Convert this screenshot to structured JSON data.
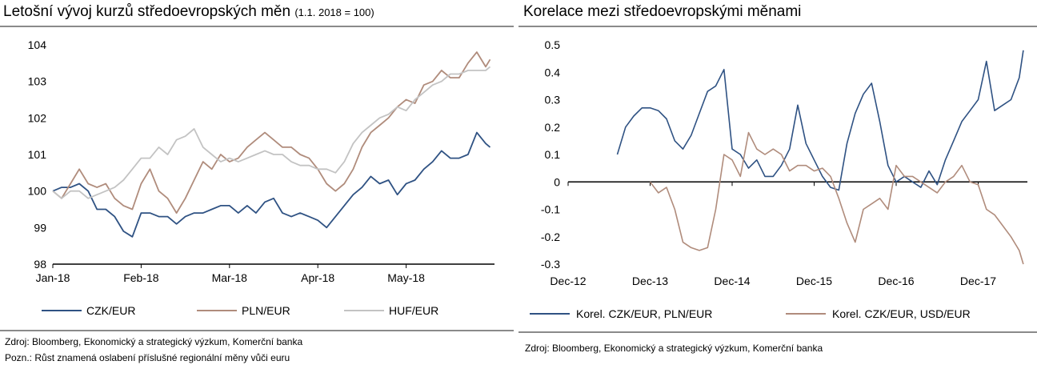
{
  "left": {
    "title": "Letošní vývoj kurzů středoevropských měn",
    "title_sub": "(1.1. 2018 = 100)",
    "source_lines": [
      "Zdroj: Bloomberg, Ekonomický a strategický výzkum, Komerční banka",
      "Pozn.: Růst znamená oslabení příslušné regionální měny vůči euru"
    ]
  },
  "right": {
    "title": "Korelace mezi středoevropskými měnami",
    "source_lines": [
      "Zdroj: Bloomberg, Ekonomický a strategický výzkum, Komerční banka"
    ]
  },
  "chart_data": [
    {
      "type": "line",
      "title": "Letošní vývoj kurzů středoevropských měn (1.1. 2018 = 100)",
      "xlabel": "",
      "ylabel": "",
      "x_ticks": [
        "Jan-18",
        "Feb-18",
        "Mar-18",
        "Apr-18",
        "May-18"
      ],
      "x_range_months": [
        0,
        5
      ],
      "ylim": [
        98,
        104
      ],
      "y_ticks": [
        98,
        99,
        100,
        101,
        102,
        103,
        104
      ],
      "grid": false,
      "legend_position": "bottom",
      "series": [
        {
          "name": "CZK/EUR",
          "color": "#2f5283",
          "x": [
            0,
            0.1,
            0.2,
            0.3,
            0.4,
            0.5,
            0.6,
            0.7,
            0.8,
            0.9,
            1.0,
            1.1,
            1.2,
            1.3,
            1.4,
            1.5,
            1.6,
            1.7,
            1.8,
            1.9,
            2.0,
            2.1,
            2.2,
            2.3,
            2.4,
            2.5,
            2.6,
            2.7,
            2.8,
            2.9,
            3.0,
            3.1,
            3.2,
            3.3,
            3.4,
            3.5,
            3.6,
            3.7,
            3.8,
            3.9,
            4.0,
            4.1,
            4.2,
            4.3,
            4.4,
            4.5,
            4.6,
            4.7,
            4.8,
            4.9,
            4.95
          ],
          "values": [
            100,
            100.1,
            100.1,
            100.2,
            100.0,
            99.5,
            99.5,
            99.3,
            98.9,
            98.75,
            99.4,
            99.4,
            99.3,
            99.3,
            99.1,
            99.3,
            99.4,
            99.4,
            99.5,
            99.6,
            99.6,
            99.4,
            99.6,
            99.4,
            99.7,
            99.8,
            99.4,
            99.3,
            99.4,
            99.3,
            99.2,
            99.0,
            99.3,
            99.6,
            99.9,
            100.1,
            100.4,
            100.2,
            100.3,
            99.9,
            100.2,
            100.3,
            100.6,
            100.8,
            101.1,
            100.9,
            100.9,
            101.0,
            101.6,
            101.3,
            101.2
          ]
        },
        {
          "name": "PLN/EUR",
          "color": "#b08c7c",
          "x": [
            0,
            0.1,
            0.2,
            0.3,
            0.4,
            0.5,
            0.6,
            0.7,
            0.8,
            0.9,
            1.0,
            1.1,
            1.2,
            1.3,
            1.4,
            1.5,
            1.6,
            1.7,
            1.8,
            1.9,
            2.0,
            2.1,
            2.2,
            2.3,
            2.4,
            2.5,
            2.6,
            2.7,
            2.8,
            2.9,
            3.0,
            3.1,
            3.2,
            3.3,
            3.4,
            3.5,
            3.6,
            3.7,
            3.8,
            3.9,
            4.0,
            4.1,
            4.2,
            4.3,
            4.4,
            4.5,
            4.6,
            4.7,
            4.8,
            4.9,
            4.95
          ],
          "values": [
            100,
            99.8,
            100.2,
            100.6,
            100.2,
            100.1,
            100.2,
            99.8,
            99.6,
            99.5,
            100.2,
            100.6,
            100.0,
            99.8,
            99.4,
            99.8,
            100.3,
            100.8,
            100.6,
            101.0,
            100.8,
            100.9,
            101.2,
            101.4,
            101.6,
            101.4,
            101.2,
            101.2,
            101.0,
            100.9,
            100.6,
            100.2,
            100.0,
            100.2,
            100.6,
            101.2,
            101.6,
            101.8,
            102.0,
            102.3,
            102.5,
            102.4,
            102.9,
            103.0,
            103.3,
            103.1,
            103.1,
            103.5,
            103.8,
            103.4,
            103.6
          ]
        },
        {
          "name": "HUF/EUR",
          "color": "#c3c3c3",
          "x": [
            0,
            0.1,
            0.2,
            0.3,
            0.4,
            0.5,
            0.6,
            0.7,
            0.8,
            0.9,
            1.0,
            1.1,
            1.2,
            1.3,
            1.4,
            1.5,
            1.6,
            1.7,
            1.8,
            1.9,
            2.0,
            2.1,
            2.2,
            2.3,
            2.4,
            2.5,
            2.6,
            2.7,
            2.8,
            2.9,
            3.0,
            3.1,
            3.2,
            3.3,
            3.4,
            3.5,
            3.6,
            3.7,
            3.8,
            3.9,
            4.0,
            4.1,
            4.2,
            4.3,
            4.4,
            4.5,
            4.6,
            4.7,
            4.8,
            4.9,
            4.95
          ],
          "values": [
            100,
            99.8,
            100.0,
            100.0,
            99.8,
            99.9,
            100.0,
            100.1,
            100.3,
            100.6,
            100.9,
            100.9,
            101.2,
            101.0,
            101.4,
            101.5,
            101.7,
            101.2,
            101.0,
            100.8,
            100.9,
            100.8,
            100.9,
            101.0,
            101.1,
            101.0,
            101.0,
            100.8,
            100.7,
            100.7,
            100.6,
            100.6,
            100.5,
            100.8,
            101.3,
            101.6,
            101.8,
            102.0,
            102.1,
            102.3,
            102.2,
            102.5,
            102.7,
            102.9,
            103.0,
            103.2,
            103.2,
            103.3,
            103.3,
            103.3,
            103.4
          ]
        }
      ]
    },
    {
      "type": "line",
      "title": "Korelace mezi středoevropskými měnami",
      "xlabel": "",
      "ylabel": "",
      "x_ticks": [
        "Dec-12",
        "Dec-13",
        "Dec-14",
        "Dec-15",
        "Dec-16",
        "Dec-17"
      ],
      "x_range_years": [
        0,
        5.6
      ],
      "ylim": [
        -0.3,
        0.5
      ],
      "y_ticks": [
        -0.3,
        -0.2,
        -0.1,
        0,
        0.1,
        0.2,
        0.3,
        0.4,
        0.5
      ],
      "zero_line": true,
      "grid": false,
      "legend_position": "bottom",
      "series": [
        {
          "name": "Korel. CZK/EUR, PLN/EUR",
          "color": "#2f5283",
          "x": [
            0.6,
            0.7,
            0.8,
            0.9,
            1.0,
            1.1,
            1.2,
            1.3,
            1.4,
            1.5,
            1.6,
            1.7,
            1.8,
            1.9,
            2.0,
            2.1,
            2.2,
            2.3,
            2.4,
            2.5,
            2.6,
            2.7,
            2.8,
            2.9,
            3.0,
            3.1,
            3.2,
            3.3,
            3.4,
            3.5,
            3.6,
            3.7,
            3.8,
            3.9,
            4.0,
            4.1,
            4.2,
            4.3,
            4.4,
            4.5,
            4.6,
            4.7,
            4.8,
            4.9,
            5.0,
            5.1,
            5.2,
            5.3,
            5.4,
            5.5,
            5.55
          ],
          "values": [
            0.1,
            0.2,
            0.24,
            0.27,
            0.27,
            0.26,
            0.23,
            0.15,
            0.12,
            0.17,
            0.25,
            0.33,
            0.35,
            0.41,
            0.12,
            0.1,
            0.05,
            0.08,
            0.02,
            0.02,
            0.06,
            0.12,
            0.28,
            0.14,
            0.08,
            0.02,
            -0.02,
            -0.03,
            0.14,
            0.25,
            0.32,
            0.36,
            0.22,
            0.06,
            0.0,
            0.02,
            0.0,
            -0.02,
            0.04,
            -0.01,
            0.08,
            0.15,
            0.22,
            0.26,
            0.3,
            0.44,
            0.26,
            0.28,
            0.3,
            0.38,
            0.48
          ]
        },
        {
          "name": "Korel. CZK/EUR, USD/EUR",
          "color": "#b08c7c",
          "x": [
            1.0,
            1.1,
            1.2,
            1.3,
            1.4,
            1.5,
            1.6,
            1.7,
            1.8,
            1.9,
            2.0,
            2.1,
            2.2,
            2.3,
            2.4,
            2.5,
            2.6,
            2.7,
            2.8,
            2.9,
            3.0,
            3.1,
            3.2,
            3.3,
            3.4,
            3.5,
            3.6,
            3.7,
            3.8,
            3.9,
            4.0,
            4.1,
            4.2,
            4.3,
            4.4,
            4.5,
            4.6,
            4.7,
            4.8,
            4.9,
            5.0,
            5.1,
            5.2,
            5.3,
            5.4,
            5.5,
            5.55
          ],
          "values": [
            0.0,
            -0.04,
            -0.02,
            -0.1,
            -0.22,
            -0.24,
            -0.25,
            -0.24,
            -0.1,
            0.1,
            0.08,
            0.02,
            0.18,
            0.12,
            0.1,
            0.12,
            0.1,
            0.04,
            0.06,
            0.06,
            0.04,
            0.05,
            0.02,
            -0.06,
            -0.15,
            -0.22,
            -0.1,
            -0.08,
            -0.06,
            -0.1,
            0.06,
            0.02,
            0.02,
            0.0,
            -0.02,
            -0.04,
            0.0,
            0.02,
            0.06,
            0.0,
            -0.01,
            -0.1,
            -0.12,
            -0.16,
            -0.2,
            -0.25,
            -0.3
          ]
        }
      ]
    }
  ]
}
